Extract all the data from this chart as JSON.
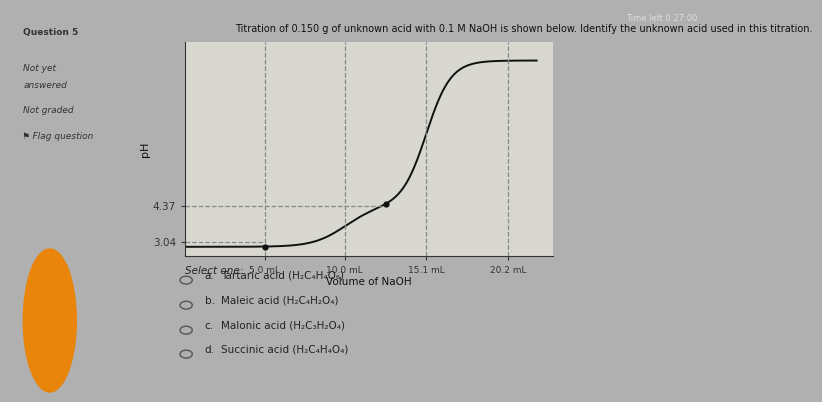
{
  "bg_color": "#b0b0b0",
  "panel_bg": "#c8c8c0",
  "sidebar_bg": "#e8e8e8",
  "plot_bg": "#d8d8d0",
  "title": "Titration of 0.150 g of unknown acid with 0.1 M NaOH is shown below. Identify the unknown acid used in this titration.",
  "title_color": "#111111",
  "title_fontsize": 7.0,
  "xlabel": "Volume of NaOH",
  "ylabel": "pH",
  "xlabel_fontsize": 7.5,
  "ylabel_fontsize": 8,
  "ph_37": 4.37,
  "ph_04": 3.04,
  "x_ticks": [
    5.0,
    10.0,
    15.1,
    20.2
  ],
  "x_tick_labels": [
    "5.0 mL",
    "10.0 mL",
    "15.1 mL",
    "20.2 mL"
  ],
  "dashed_line_color": "#888888",
  "curve_color": "#111111",
  "dot_color": "#111111",
  "sidebar_items": [
    "Question 5",
    "Not yet",
    "answered",
    "Not graded",
    "⚑ Flag question"
  ],
  "sidebar_fontsize": 6.5,
  "sidebar_color": "#333333",
  "select_text": "Select one:",
  "options": [
    "Tartaric acid (H₂C₄H₄O₆)",
    "Maleic acid (H₂C₄H₂O₄)",
    "Malonic acid (H₂C₃H₂O₄)",
    "Succinic acid (H₂C₄H₄O₄)"
  ],
  "option_letters": [
    "a.",
    "b.",
    "c.",
    "d."
  ],
  "options_fontsize": 7.5,
  "options_color": "#222222",
  "ylim": [
    2.5,
    10.5
  ],
  "xlim": [
    0,
    23
  ],
  "orange_circle_color": "#e8850a",
  "timer_text": "Time left 0:27:00",
  "timer_color": "#dddddd",
  "timer_fontsize": 6,
  "x_eq1": 10.0,
  "x_eq2": 15.1,
  "x_half1": 5.0,
  "x_half2": 12.55,
  "ph_half1": 3.04,
  "ph_half2": 4.37,
  "ph_start": 2.85,
  "ph_plateau": 9.8
}
